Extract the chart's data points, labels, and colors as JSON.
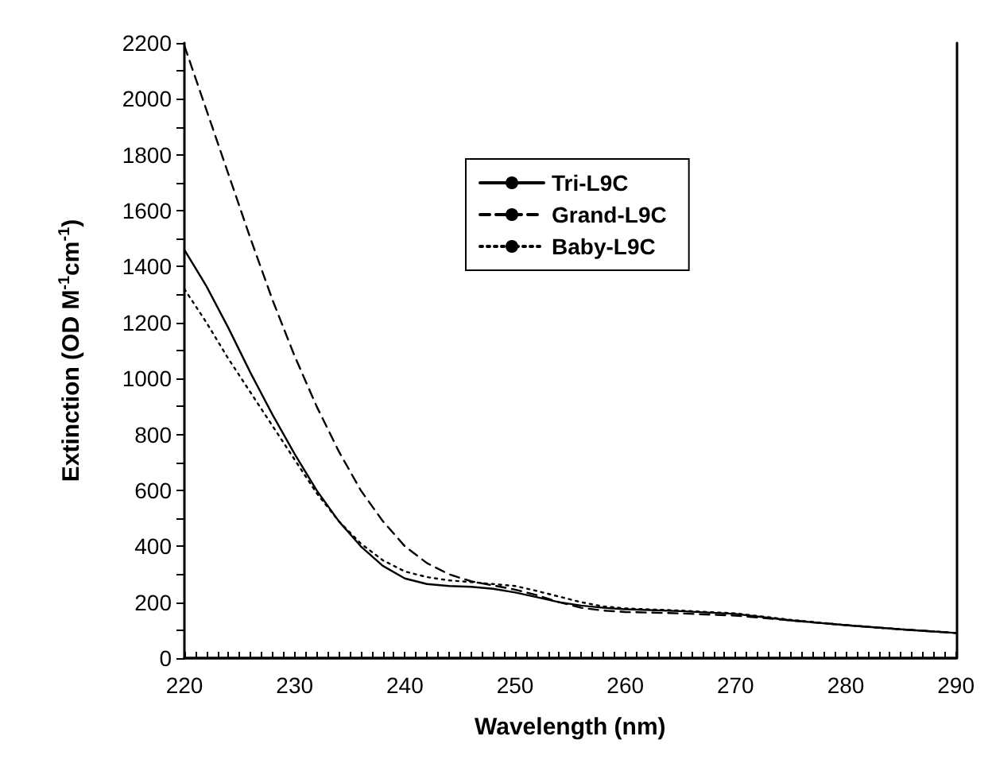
{
  "chart_data": {
    "type": "line",
    "xlabel": "Wavelength (nm)",
    "ylabel": "Extinction (OD M$^{-1}$cm$^{-1}$)",
    "x": [
      220,
      222,
      224,
      226,
      228,
      230,
      232,
      234,
      236,
      238,
      240,
      242,
      244,
      246,
      248,
      250,
      252,
      254,
      256,
      258,
      260,
      265,
      270,
      275,
      280,
      285,
      290
    ],
    "series": [
      {
        "name": "Tri-L9C",
        "color": "#000000",
        "line_style": "solid",
        "values": [
          1460,
          1330,
          1180,
          1020,
          870,
          730,
          600,
          490,
          400,
          330,
          285,
          265,
          258,
          255,
          248,
          235,
          218,
          200,
          188,
          180,
          175,
          168,
          158,
          135,
          118,
          103,
          90
        ]
      },
      {
        "name": "Grand-L9C",
        "color": "#000000",
        "line_style": "dashed",
        "values": [
          2190,
          1960,
          1730,
          1500,
          1280,
          1080,
          900,
          740,
          600,
          490,
          400,
          340,
          300,
          275,
          260,
          245,
          225,
          200,
          180,
          170,
          165,
          160,
          152,
          135,
          118,
          103,
          90
        ]
      },
      {
        "name": "Baby-L9C",
        "color": "#000000",
        "line_style": "dotted",
        "values": [
          1320,
          1200,
          1070,
          950,
          830,
          710,
          590,
          490,
          410,
          350,
          310,
          290,
          278,
          272,
          265,
          258,
          240,
          220,
          200,
          185,
          178,
          170,
          160,
          137,
          118,
          103,
          90
        ]
      }
    ],
    "xlim": [
      220,
      290
    ],
    "xticks": [
      220,
      230,
      240,
      250,
      260,
      270,
      280,
      290
    ],
    "ylim": [
      0,
      2200
    ],
    "yticks": [
      0,
      200,
      400,
      600,
      800,
      1000,
      1200,
      1400,
      1600,
      1800,
      2000,
      2200
    ],
    "grid": false,
    "legend": "top right",
    "marker": "none"
  }
}
